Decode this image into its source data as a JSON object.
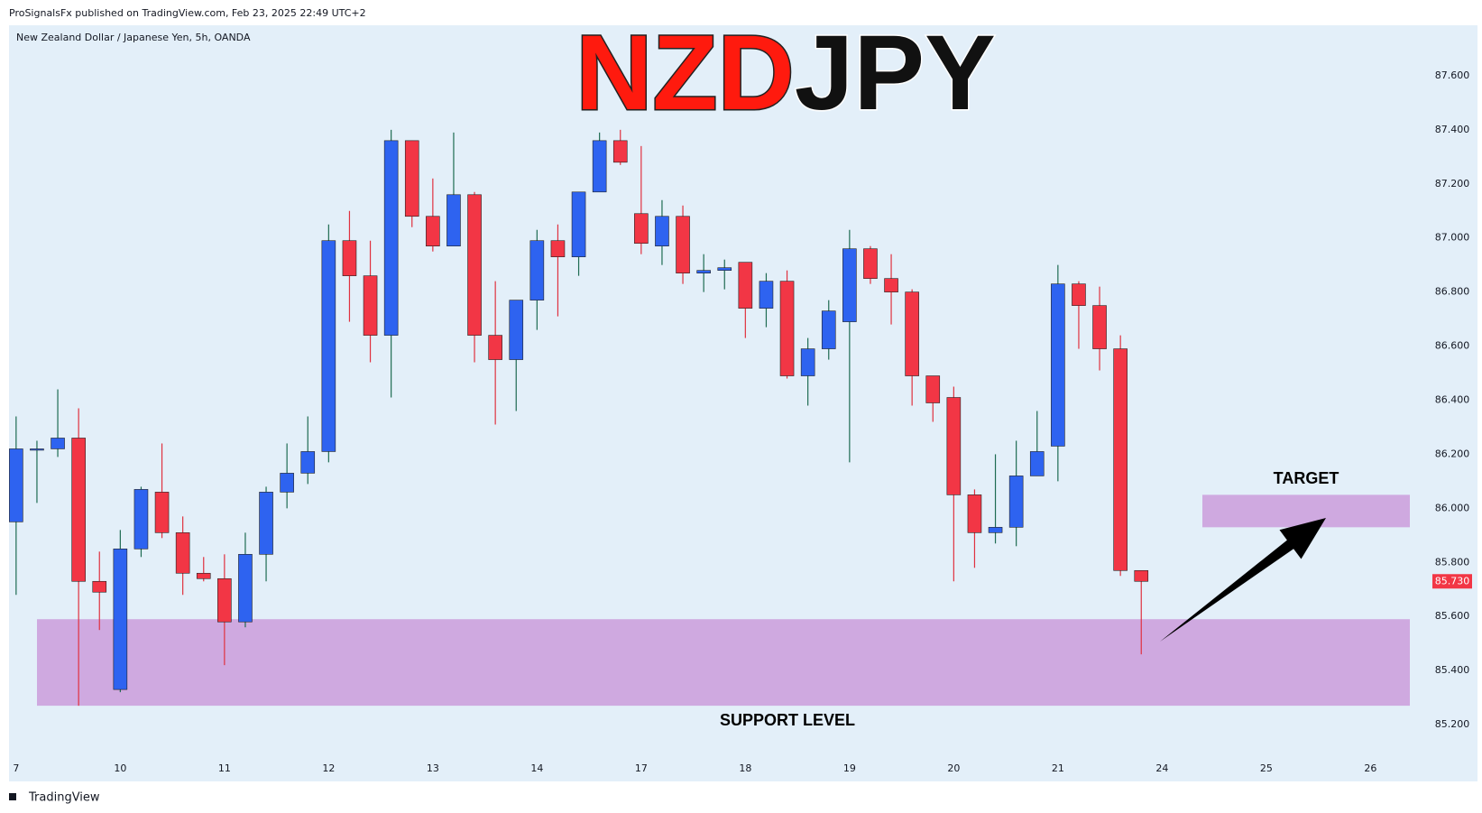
{
  "header": {
    "publisher": "ProSignalsFx published on TradingView.com, Feb 23, 2025 22:49 UTC+2",
    "footer": "TradingView"
  },
  "chart_data": {
    "type": "candlestick",
    "title_parts": [
      "NZD",
      "JPY"
    ],
    "title_colors": [
      "#ff1a0e",
      "#111111"
    ],
    "subtitle": "New Zealand Dollar / Japanese Yen, 5h, OANDA",
    "categories": [
      "7",
      null,
      null,
      null,
      null,
      "10",
      null,
      null,
      null,
      null,
      "11",
      null,
      null,
      null,
      null,
      "12",
      null,
      null,
      null,
      null,
      "13",
      null,
      null,
      null,
      null,
      "14",
      null,
      null,
      null,
      null,
      "17",
      null,
      null,
      null,
      null,
      "18",
      null,
      null,
      null,
      null,
      "19",
      null,
      null,
      null,
      null,
      "20",
      null,
      null,
      null,
      null,
      "21",
      null,
      null,
      null,
      null,
      "24",
      null,
      null,
      null,
      null,
      "25",
      null,
      null,
      null,
      null,
      "26"
    ],
    "open": [
      85.95,
      86.22,
      86.22,
      86.26,
      85.73,
      85.33,
      85.85,
      86.06,
      85.91,
      85.76,
      85.74,
      85.58,
      85.83,
      86.06,
      86.13,
      86.21,
      86.99,
      86.86,
      86.64,
      87.36,
      87.08,
      86.97,
      87.16,
      86.64,
      86.55,
      86.77,
      86.99,
      86.93,
      87.17,
      87.36,
      87.09,
      86.97,
      87.08,
      86.87,
      86.88,
      86.91,
      86.74,
      86.84,
      86.49,
      86.59,
      86.69,
      86.96,
      86.85,
      86.8,
      86.49,
      86.41,
      86.05,
      85.91,
      85.93,
      86.12,
      86.23,
      86.83,
      86.75,
      86.59,
      85.77,
      null,
      null,
      null,
      null,
      null,
      null,
      null,
      null,
      null,
      null,
      null
    ],
    "high": [
      86.34,
      86.25,
      86.44,
      86.37,
      85.84,
      85.92,
      86.08,
      86.24,
      85.97,
      85.82,
      85.83,
      85.91,
      86.08,
      86.24,
      86.34,
      87.05,
      87.1,
      86.99,
      87.4,
      87.36,
      87.22,
      87.39,
      87.17,
      86.84,
      86.77,
      87.03,
      87.05,
      87.17,
      87.39,
      87.4,
      87.34,
      87.14,
      87.12,
      86.94,
      86.92,
      86.91,
      86.87,
      86.88,
      86.63,
      86.77,
      87.03,
      86.97,
      86.94,
      86.81,
      86.49,
      86.45,
      86.07,
      86.2,
      86.25,
      86.36,
      86.9,
      86.84,
      86.82,
      86.64,
      85.77,
      null,
      null,
      null,
      null,
      null,
      null,
      null,
      null,
      null,
      null,
      null
    ],
    "low": [
      85.68,
      86.02,
      86.19,
      85.27,
      85.55,
      85.32,
      85.82,
      85.89,
      85.68,
      85.73,
      85.42,
      85.56,
      85.73,
      86.0,
      86.09,
      86.17,
      86.69,
      86.54,
      86.41,
      87.04,
      86.95,
      86.97,
      86.54,
      86.31,
      86.36,
      86.66,
      86.71,
      86.86,
      87.17,
      87.27,
      86.94,
      86.9,
      86.83,
      86.8,
      86.81,
      86.63,
      86.67,
      86.48,
      86.38,
      86.55,
      86.17,
      86.83,
      86.68,
      86.38,
      86.32,
      85.73,
      85.78,
      85.87,
      85.86,
      86.12,
      86.1,
      86.59,
      86.51,
      85.75,
      85.46,
      null,
      null,
      null,
      null,
      null,
      null,
      null,
      null,
      null,
      null,
      null
    ],
    "close": [
      86.22,
      86.22,
      86.26,
      85.73,
      85.69,
      85.85,
      86.07,
      85.91,
      85.76,
      85.74,
      85.58,
      85.83,
      86.06,
      86.13,
      86.21,
      86.99,
      86.86,
      86.64,
      87.36,
      87.08,
      86.97,
      87.16,
      86.64,
      86.55,
      86.77,
      86.99,
      86.93,
      87.17,
      87.36,
      87.28,
      86.98,
      87.08,
      86.87,
      86.88,
      86.89,
      86.74,
      86.84,
      86.49,
      86.59,
      86.73,
      86.96,
      86.85,
      86.8,
      86.49,
      86.39,
      86.05,
      85.91,
      85.93,
      86.12,
      86.21,
      86.83,
      86.75,
      86.59,
      85.77,
      85.73,
      null,
      null,
      null,
      null,
      null,
      null,
      null,
      null,
      null,
      null,
      null
    ],
    "up_color": "#2e63f0",
    "down_color": "#f23645",
    "up_wick_color": "#1e6b52",
    "down_wick_color": "#e0313f",
    "ylim": [
      84.99,
      87.78
    ],
    "yticks": [
      {
        "value": 85.2,
        "label": "85.200"
      },
      {
        "value": 85.4,
        "label": "85.400"
      },
      {
        "value": 85.6,
        "label": "85.600"
      },
      {
        "value": 85.8,
        "label": "85.800"
      },
      {
        "value": 86.0,
        "label": "86.000"
      },
      {
        "value": 86.2,
        "label": "86.200"
      },
      {
        "value": 86.4,
        "label": "86.400"
      },
      {
        "value": 86.6,
        "label": "86.600"
      },
      {
        "value": 86.8,
        "label": "86.800"
      },
      {
        "value": 87.0,
        "label": "87.000"
      },
      {
        "value": 87.2,
        "label": "87.200"
      },
      {
        "value": 87.4,
        "label": "87.400"
      },
      {
        "value": 87.6,
        "label": "87.600"
      }
    ],
    "last_price": {
      "value": 85.73,
      "label": "85.730"
    },
    "zones": [
      {
        "label": "SUPPORT LEVEL",
        "low": 85.27,
        "high": 85.59,
        "color": "#cfa9e0"
      },
      {
        "label": "TARGET",
        "low": 85.93,
        "high": 86.05,
        "color": "#cfa9e0"
      }
    ],
    "grid": false
  }
}
